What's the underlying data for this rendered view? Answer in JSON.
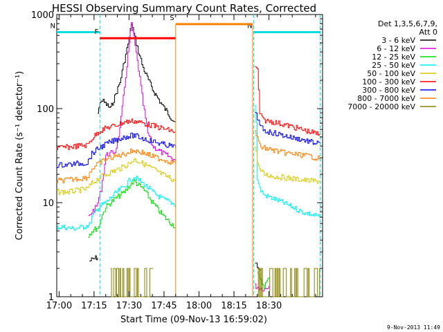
{
  "chart_data": {
    "type": "line",
    "title": "HESSI Observing Summary Count Rates, Corrected",
    "xlabel": "Start Time (09-Nov-13 16:59:02)",
    "ylabel": "Corrected Count Rate (s⁻¹ detector⁻¹)",
    "y_scale": "log",
    "ylim": [
      1,
      1000
    ],
    "xlim_minutes_after_1700": [
      -1,
      113
    ],
    "x_tick_labels": [
      "17:00",
      "17:15",
      "17:30",
      "17:45",
      "18:00",
      "18:15",
      "18:30"
    ],
    "y_tick_labels": [
      "1",
      "10",
      "100",
      "1000"
    ],
    "footer": "9-Nov-2013 11:49",
    "legend": {
      "placement": "top-right, outside plot",
      "title_line1": "Det 1,3,5,6,7,9,",
      "title_line2": "Att 0",
      "entries": [
        {
          "label": "3 - 6 keV",
          "color": "#000000"
        },
        {
          "label": "6 - 12 keV",
          "color": "#e000e0"
        },
        {
          "label": "12 - 25 keV",
          "color": "#00dd00"
        },
        {
          "label": "25 - 50 keV",
          "color": "#00eeee"
        },
        {
          "label": "50 - 100 keV",
          "color": "#d8c800"
        },
        {
          "label": "100 - 300 keV",
          "color": "#ff0000"
        },
        {
          "label": "300 - 800 keV",
          "color": "#0000ee"
        },
        {
          "label": "800 - 7000 keV",
          "color": "#ff7f00"
        },
        {
          "label": "7000 - 20000 keV",
          "color": "#888000"
        }
      ]
    },
    "flags": [
      {
        "label": "N",
        "color": "#00dddd",
        "x_range": [
          -1,
          17.5
        ],
        "y": 650,
        "vline": [
          17.5
        ]
      },
      {
        "label": "N",
        "color": "#00dddd",
        "x_range": [
          83.5,
          112
        ],
        "y": 650,
        "vline": [
          83.5,
          112
        ]
      },
      {
        "label": "F",
        "color": "#ff0000",
        "x_range": [
          17.5,
          50
        ],
        "y": 560
      },
      {
        "label": "S",
        "color": "#ff7f00",
        "x_range": [
          50,
          83
        ],
        "y": 790
      }
    ],
    "gaps": [
      [
        50,
        83
      ]
    ],
    "series": [
      {
        "name": "3 - 6 keV",
        "color": "#000000",
        "segments": [
          {
            "t": [
              13,
              16,
              16.5
            ],
            "v": [
              2.4,
              2.6,
              2.6
            ]
          },
          {
            "t": [
              16.5,
              18,
              22,
              26,
              28,
              30,
              31,
              32,
              34,
              36,
              40,
              44,
              48,
              50
            ],
            "v": [
              90,
              125,
              100,
              190,
              330,
              560,
              820,
              620,
              400,
              270,
              160,
              110,
              80,
              72
            ]
          },
          {
            "t": [
              84,
              85,
              86
            ],
            "v": [
              2.3,
              2.0,
              1.9
            ]
          }
        ]
      },
      {
        "name": "6 - 12 keV",
        "color": "#e000e0",
        "segments": [
          {
            "t": [
              12.5,
              14,
              16,
              18,
              20,
              24,
              26,
              28,
              30,
              31,
              32,
              34,
              36,
              38,
              40,
              44,
              48,
              50
            ],
            "v": [
              7,
              8,
              9,
              14,
              32,
              35,
              60,
              170,
              500,
              800,
              560,
              260,
              110,
              55,
              40,
              34,
              30,
              28
            ]
          },
          {
            "t": [
              84,
              88,
              90
            ],
            "v": [
              1.3,
              1.2,
              1.3
            ]
          }
        ]
      },
      {
        "name": "12 - 25 keV",
        "color": "#00dd00",
        "segments": [
          {
            "t": [
              12.5,
              14,
              17,
              18,
              20,
              24,
              28,
              30,
              32,
              36,
              40,
              44,
              48,
              50
            ],
            "v": [
              4.5,
              5,
              5.5,
              7,
              9,
              11,
              13,
              15,
              17,
              14,
              10,
              7.5,
              6,
              5.5
            ]
          },
          {
            "t": [
              85,
              86,
              87,
              88,
              90
            ],
            "v": [
              1.8,
              1.5,
              1.4,
              1.3,
              1.6
            ]
          }
        ]
      },
      {
        "name": "25 - 50 keV",
        "color": "#00eeee",
        "segments": [
          {
            "t": [
              -1,
              2,
              6,
              10,
              13,
              14,
              17,
              20,
              24,
              28,
              30,
              32,
              36,
              40,
              44,
              48,
              50
            ],
            "v": [
              5.5,
              5.5,
              5.3,
              5.5,
              5.8,
              7,
              9,
              10,
              12.5,
              15,
              17,
              19,
              16,
              13,
              11,
              10,
              9.5
            ]
          },
          {
            "t": [
              84,
              84.5,
              85,
              86,
              88,
              92,
              96,
              100,
              104,
              108,
              112
            ],
            "v": [
              110,
              70,
              18,
              14,
              12,
              11,
              10,
              9,
              8,
              7.5,
              7
            ]
          }
        ]
      },
      {
        "name": "50 - 100 keV",
        "color": "#d8c800",
        "segments": [
          {
            "t": [
              -1,
              4,
              8,
              12,
              14,
              18,
              22,
              26,
              30,
              32,
              36,
              40,
              44,
              48,
              50
            ],
            "v": [
              13,
              13,
              13.5,
              14,
              16,
              19,
              21,
              23,
              26,
              29,
              26,
              23,
              20,
              18,
              17
            ]
          },
          {
            "t": [
              84,
              85,
              86,
              88,
              92,
              96,
              100,
              104,
              108,
              112
            ],
            "v": [
              40,
              28,
              22,
              20,
              19,
              18.5,
              18,
              17.5,
              17,
              17
            ]
          }
        ]
      },
      {
        "name": "100 - 300 keV",
        "color": "#ff0000",
        "segments": [
          {
            "t": [
              -1,
              4,
              8,
              12,
              14,
              17,
              20,
              24,
              28,
              32,
              36,
              40,
              44,
              48,
              50
            ],
            "v": [
              38,
              39,
              40,
              41,
              48,
              57,
              62,
              66,
              72,
              74,
              70,
              66,
              62,
              58,
              56
            ]
          },
          {
            "t": [
              84,
              85,
              86,
              87,
              88,
              92,
              96,
              100,
              104,
              108,
              112
            ],
            "v": [
              270,
              260,
              90,
              78,
              75,
              72,
              68,
              64,
              60,
              56,
              53
            ]
          }
        ]
      },
      {
        "name": "300 - 800 keV",
        "color": "#0000ee",
        "segments": [
          {
            "t": [
              -1,
              4,
              8,
              12,
              14,
              17,
              20,
              24,
              28,
              32,
              36,
              40,
              44,
              48,
              50
            ],
            "v": [
              25,
              25.5,
              26,
              26.5,
              33,
              38,
              42,
              46,
              50,
              52,
              48,
              45,
              42,
              40,
              38
            ]
          },
          {
            "t": [
              84,
              85,
              86,
              88,
              92,
              96,
              100,
              104,
              108,
              112
            ],
            "v": [
              95,
              80,
              65,
              58,
              55,
              52,
              49,
              47,
              44,
              42
            ]
          }
        ]
      },
      {
        "name": "800 - 7000 keV",
        "color": "#ff7f00",
        "segments": [
          {
            "t": [
              -1,
              4,
              8,
              12,
              14,
              17,
              20,
              24,
              28,
              32,
              36,
              40,
              44,
              48,
              50
            ],
            "v": [
              17,
              17.5,
              18,
              18.5,
              23,
              26,
              29,
              31,
              33,
              36,
              34,
              31,
              29,
              27,
              26
            ]
          },
          {
            "t": [
              84,
              85,
              86,
              88,
              92,
              96,
              100,
              104,
              108,
              112
            ],
            "v": [
              60,
              48,
              40,
              38,
              36,
              34,
              33,
              32,
              31,
              29
            ]
          }
        ]
      },
      {
        "name": "7000 - 20000 keV",
        "color": "#888000",
        "segments": [
          {
            "t": [
              22,
              40
            ],
            "v": [
              1,
              2
            ],
            "style": "noise"
          },
          {
            "t": [
              85,
              112
            ],
            "v": [
              1,
              2
            ],
            "style": "noise"
          }
        ]
      }
    ]
  }
}
